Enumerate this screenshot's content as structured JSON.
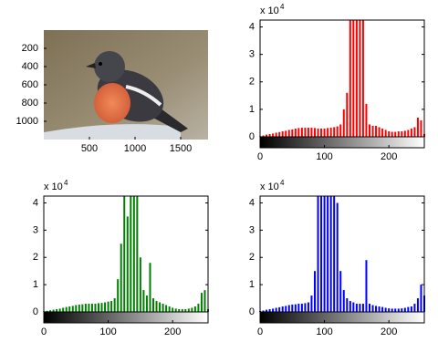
{
  "chart_data": [
    {
      "type": "image",
      "xlim": [
        0,
        1800
      ],
      "ylim": [
        0,
        1200
      ],
      "y_reversed": true,
      "xticks": [
        500,
        1000,
        1500
      ],
      "yticks": [
        200,
        400,
        600,
        800,
        1000
      ]
    },
    {
      "type": "stem",
      "color": "#ff0000",
      "xlim": [
        0,
        255
      ],
      "ylim": [
        0,
        4.25
      ],
      "xticks": [
        0,
        100,
        200
      ],
      "yticks": [
        0,
        1,
        2,
        3,
        4
      ],
      "y_multiplier_text": "x 10",
      "y_multiplier_exponent": 4,
      "x": [
        0,
        5,
        10,
        15,
        20,
        25,
        30,
        35,
        40,
        45,
        50,
        55,
        60,
        65,
        70,
        75,
        80,
        85,
        90,
        95,
        100,
        105,
        110,
        115,
        120,
        125,
        130,
        135,
        140,
        145,
        150,
        155,
        160,
        165,
        170,
        175,
        180,
        185,
        190,
        195,
        200,
        205,
        210,
        215,
        220,
        225,
        230,
        235,
        240,
        245,
        250,
        255
      ],
      "values": [
        0.02,
        0.05,
        0.08,
        0.1,
        0.12,
        0.15,
        0.17,
        0.2,
        0.22,
        0.25,
        0.27,
        0.3,
        0.32,
        0.33,
        0.33,
        0.33,
        0.33,
        0.32,
        0.3,
        0.3,
        0.3,
        0.32,
        0.33,
        0.35,
        0.38,
        0.45,
        1.0,
        1.6,
        4.25,
        4.25,
        4.25,
        4.25,
        4.25,
        1.2,
        0.45,
        0.4,
        0.4,
        0.35,
        0.3,
        0.25,
        0.2,
        0.18,
        0.18,
        0.2,
        0.2,
        0.22,
        0.25,
        0.3,
        0.35,
        0.7,
        0.6,
        0.1
      ]
    },
    {
      "type": "stem",
      "color": "#008000",
      "xlim": [
        0,
        255
      ],
      "ylim": [
        0,
        4.25
      ],
      "xticks": [
        0,
        100,
        200
      ],
      "yticks": [
        0,
        1,
        2,
        3,
        4
      ],
      "y_multiplier_text": "x 10",
      "y_multiplier_exponent": 4,
      "x": [
        0,
        5,
        10,
        15,
        20,
        25,
        30,
        35,
        40,
        45,
        50,
        55,
        60,
        65,
        70,
        75,
        80,
        85,
        90,
        95,
        100,
        105,
        110,
        115,
        120,
        125,
        130,
        135,
        140,
        145,
        150,
        155,
        160,
        165,
        170,
        175,
        180,
        185,
        190,
        195,
        200,
        205,
        210,
        215,
        220,
        225,
        230,
        235,
        240,
        245,
        250,
        255
      ],
      "values": [
        0.02,
        0.04,
        0.06,
        0.08,
        0.1,
        0.12,
        0.15,
        0.18,
        0.2,
        0.22,
        0.25,
        0.27,
        0.28,
        0.3,
        0.3,
        0.3,
        0.3,
        0.32,
        0.33,
        0.35,
        0.38,
        0.4,
        0.5,
        1.2,
        2.5,
        4.25,
        3.5,
        4.25,
        4.25,
        4.25,
        2.0,
        0.8,
        0.6,
        1.8,
        0.5,
        0.4,
        0.35,
        0.3,
        0.25,
        0.2,
        0.15,
        0.12,
        0.1,
        0.1,
        0.1,
        0.12,
        0.15,
        0.2,
        0.3,
        0.7,
        0.8,
        0.1
      ]
    },
    {
      "type": "stem",
      "color": "#0000ff",
      "xlim": [
        0,
        255
      ],
      "ylim": [
        0,
        4.25
      ],
      "xticks": [
        0,
        100,
        200
      ],
      "yticks": [
        0,
        1,
        2,
        3,
        4
      ],
      "y_multiplier_text": "x 10",
      "y_multiplier_exponent": 4,
      "x": [
        0,
        5,
        10,
        15,
        20,
        25,
        30,
        35,
        40,
        45,
        50,
        55,
        60,
        65,
        70,
        75,
        80,
        85,
        90,
        95,
        100,
        105,
        110,
        115,
        120,
        125,
        130,
        135,
        140,
        145,
        150,
        155,
        160,
        165,
        170,
        175,
        180,
        185,
        190,
        195,
        200,
        205,
        210,
        215,
        220,
        225,
        230,
        235,
        240,
        245,
        250,
        255
      ],
      "values": [
        0.03,
        0.05,
        0.08,
        0.1,
        0.12,
        0.15,
        0.17,
        0.2,
        0.22,
        0.25,
        0.27,
        0.28,
        0.3,
        0.3,
        0.32,
        0.35,
        0.6,
        1.5,
        4.25,
        4.25,
        4.25,
        4.25,
        4.25,
        4.25,
        4.0,
        1.5,
        0.8,
        0.5,
        0.4,
        0.35,
        0.3,
        0.3,
        0.3,
        1.9,
        0.3,
        0.25,
        0.22,
        0.2,
        0.18,
        0.15,
        0.13,
        0.12,
        0.12,
        0.12,
        0.13,
        0.15,
        0.18,
        0.2,
        0.3,
        0.5,
        1.0,
        0.6
      ]
    }
  ]
}
